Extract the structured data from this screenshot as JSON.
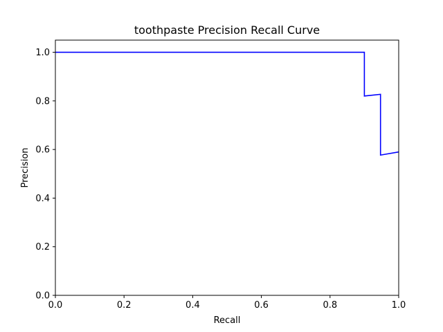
{
  "chart_data": {
    "type": "line",
    "title": "toothpaste Precision Recall Curve",
    "xlabel": "Recall",
    "ylabel": "Precision",
    "xlim": [
      0.0,
      1.0
    ],
    "ylim": [
      0.0,
      1.05
    ],
    "xticks": [
      0.0,
      0.2,
      0.4,
      0.6,
      0.8,
      1.0
    ],
    "xtick_labels": [
      "0.0",
      "0.2",
      "0.4",
      "0.6",
      "0.8",
      "1.0"
    ],
    "yticks": [
      0.0,
      0.2,
      0.4,
      0.6,
      0.8,
      1.0
    ],
    "ytick_labels": [
      "0.0",
      "0.2",
      "0.4",
      "0.6",
      "0.8",
      "1.0"
    ],
    "grid": false,
    "series": [
      {
        "color": "#0000ff",
        "x": [
          0.0,
          0.9,
          0.9,
          0.947,
          0.947,
          1.0
        ],
        "y": [
          1.0,
          1.0,
          0.82,
          0.827,
          0.577,
          0.59
        ]
      }
    ]
  }
}
